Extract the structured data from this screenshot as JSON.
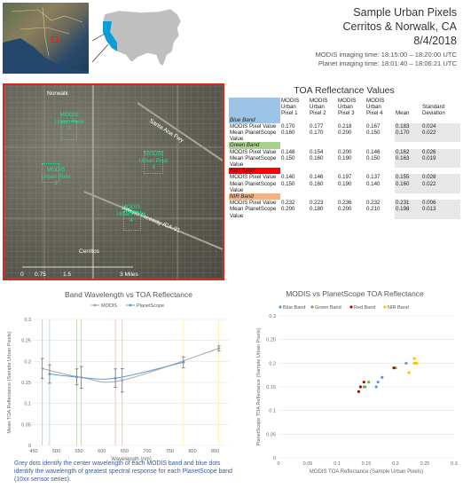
{
  "header": {
    "title_1": "Sample Urban Pixels",
    "title_2": "Cerritos & Norwalk, CA",
    "title_3": "8/4/2018",
    "modis_time": "MODIS imaging time: 18:15:00 – 18:20:00 UTC",
    "planet_time": "Planet imaging time: 18:01:40 – 18:06:21 UTC"
  },
  "satellite": {
    "place_norwalk": "Norwalk",
    "place_cerritos": "Cerritos",
    "road_1": "Santa Ana Fwy",
    "road_2": "Artesia Freeway /CA-91",
    "pixels": [
      "MODIS Urban Pixel 1",
      "MODIS Urban Pixel 2",
      "MODIS Urban Pixel 3",
      "MODIS Urban Pixel 4"
    ],
    "pixel_ids": [
      "1",
      "2",
      "3",
      "4"
    ],
    "scale_0": "0",
    "scale_075": "0.75",
    "scale_15": "1.5",
    "scale_3": "3 Miles"
  },
  "table": {
    "title": "TOA Reflectance Values",
    "headers": [
      "MODIS Urban Pixel 1",
      "MODIS Urban Pixel 2",
      "MODIS Urban Pixel 3",
      "MODIS Urban Pixel 4",
      "Mean",
      "Standard Deviation"
    ],
    "bands": [
      {
        "name": "Blue Band",
        "color": "#9dc3e6",
        "modis": [
          "0.170",
          "0.177",
          "0.218",
          "0.167",
          "0.183",
          "0.024"
        ],
        "planet": [
          "0.160",
          "0.170",
          "0.200",
          "0.150",
          "0.170",
          "0.022"
        ]
      },
      {
        "name": "Green Band",
        "color": "#a9d18e",
        "modis": [
          "0.148",
          "0.154",
          "0.200",
          "0.146",
          "0.162",
          "0.026"
        ],
        "planet": [
          "0.150",
          "0.160",
          "0.190",
          "0.150",
          "0.163",
          "0.019"
        ]
      },
      {
        "name": "Red Band",
        "color": "#ff0000",
        "modis": [
          "0.140",
          "0.146",
          "0.197",
          "0.137",
          "0.155",
          "0.028"
        ],
        "planet": [
          "0.150",
          "0.160",
          "0.190",
          "0.140",
          "0.160",
          "0.022"
        ]
      },
      {
        "name": "NIR Band",
        "color": "#f4b183",
        "modis": [
          "0.232",
          "0.223",
          "0.236",
          "0.232",
          "0.231",
          "0.006"
        ],
        "planet": [
          "0.200",
          "0.180",
          "0.200",
          "0.210",
          "0.198",
          "0.013"
        ]
      }
    ],
    "row_label_modis": "MODIS Pixel Value",
    "row_label_planet": "Mean PlanetScope Value"
  },
  "chart_data": [
    {
      "type": "line",
      "title": "Band Wavelength vs TOA Reflectance",
      "xlabel": "Wavelength (nm)",
      "ylabel": "Mean TOA Reflectance (Sample Urban Pixels)",
      "xlim": [
        450,
        880
      ],
      "ylim": [
        0,
        0.3
      ],
      "xticks": [
        "450",
        "500",
        "550",
        "600",
        "650",
        "700",
        "750",
        "800",
        "850"
      ],
      "yticks": [
        "0",
        "0.05",
        "0.1",
        "0.15",
        "0.2",
        "0.25",
        "0.3"
      ],
      "legend_position": "top",
      "series": [
        {
          "name": "MODIS",
          "color": "#a5a5a5",
          "x": [
            469,
            555,
            645,
            858
          ],
          "y": [
            0.183,
            0.162,
            0.155,
            0.231
          ],
          "err": [
            0.024,
            0.026,
            0.028,
            0.006
          ]
        },
        {
          "name": "PlanetScope",
          "color": "#5b9bd5",
          "x": [
            485,
            545,
            630,
            780
          ],
          "y": [
            0.17,
            0.163,
            0.16,
            0.198
          ],
          "err": [
            0.022,
            0.019,
            0.022,
            0.013
          ]
        }
      ],
      "band_lines": [
        {
          "x": 469,
          "color": "#9dc3e6"
        },
        {
          "x": 485,
          "color": "#9dc3e6"
        },
        {
          "x": 545,
          "color": "#a9d18e"
        },
        {
          "x": 555,
          "color": "#a9d18e"
        },
        {
          "x": 630,
          "color": "#f4a6a6"
        },
        {
          "x": 645,
          "color": "#f4a6a6"
        },
        {
          "x": 780,
          "color": "#ffe699"
        },
        {
          "x": 858,
          "color": "#ffe699"
        }
      ]
    },
    {
      "type": "scatter",
      "title": "MODIS vs PlanetScope TOA Reflectance",
      "xlabel": "MODIS TOA Reflectance (Sample Urban Pixels)",
      "ylabel": "PlanetScope TOA Reflectance (Sample Urban Pixels)",
      "xlim": [
        0,
        0.3
      ],
      "ylim": [
        0,
        0.3
      ],
      "xticks": [
        "0",
        "0.05",
        "0.1",
        "0.15",
        "0.2",
        "0.25",
        "0.3"
      ],
      "yticks": [
        "0",
        "0.05",
        "0.1",
        "0.15",
        "0.2",
        "0.25",
        "0.3"
      ],
      "legend_position": "top-left",
      "series": [
        {
          "name": "Blue Band",
          "color": "#5b9bd5",
          "x": [
            0.17,
            0.177,
            0.218,
            0.167
          ],
          "y": [
            0.16,
            0.17,
            0.2,
            0.15
          ]
        },
        {
          "name": "Green Band",
          "color": "#70ad47",
          "x": [
            0.148,
            0.154,
            0.2,
            0.146
          ],
          "y": [
            0.15,
            0.16,
            0.19,
            0.15
          ]
        },
        {
          "name": "Red Band",
          "color": "#c00000",
          "x": [
            0.14,
            0.146,
            0.197,
            0.137
          ],
          "y": [
            0.15,
            0.16,
            0.19,
            0.14
          ]
        },
        {
          "name": "NIR Band",
          "color": "#ffc000",
          "x": [
            0.232,
            0.223,
            0.236,
            0.232
          ],
          "y": [
            0.2,
            0.18,
            0.2,
            0.21
          ]
        }
      ]
    }
  ],
  "caption": "Grey dots identify the center wavelength of each MODIS band and blue dots identify the wavelength of greatest spectral response for each PlanetScope band (10xx sensor series)."
}
